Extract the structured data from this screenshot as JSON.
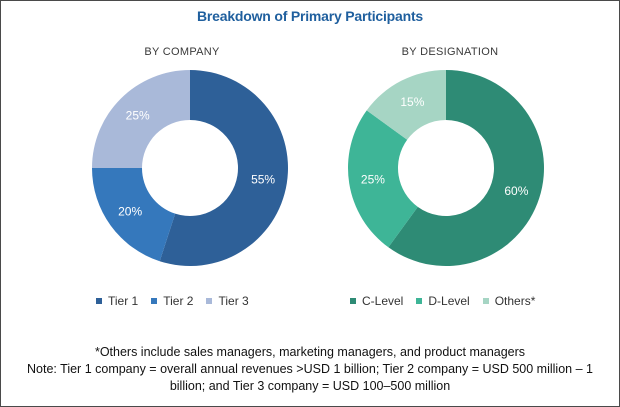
{
  "header": {
    "title": "Breakdown of Primary Participants"
  },
  "chart_data": [
    {
      "type": "pie",
      "style": "donut",
      "subtitle": "BY COMPANY",
      "series": [
        {
          "name": "Tier 1",
          "value": 55,
          "label": "55%",
          "color": "#2e6098"
        },
        {
          "name": "Tier 2",
          "value": 20,
          "label": "20%",
          "color": "#3578bc"
        },
        {
          "name": "Tier 3",
          "value": 25,
          "label": "25%",
          "color": "#a9b9d9"
        }
      ],
      "legend": "bottom"
    },
    {
      "type": "pie",
      "style": "donut",
      "subtitle": "BY DESIGNATION",
      "series": [
        {
          "name": "C-Level",
          "value": 60,
          "label": "60%",
          "color": "#2e8b75"
        },
        {
          "name": "D-Level",
          "value": 25,
          "label": "25%",
          "color": "#3eb597"
        },
        {
          "name": "Others*",
          "value": 15,
          "label": "15%",
          "color": "#a6d5c4"
        }
      ],
      "legend": "bottom"
    }
  ],
  "footnotes": {
    "line1": "*Others include sales managers, marketing managers, and product managers",
    "line2": "Note: Tier 1 company = overall annual revenues >USD 1 billion; Tier 2 company = USD 500 million – 1",
    "line3": "billion; and Tier 3 company = USD 100–500 million"
  }
}
